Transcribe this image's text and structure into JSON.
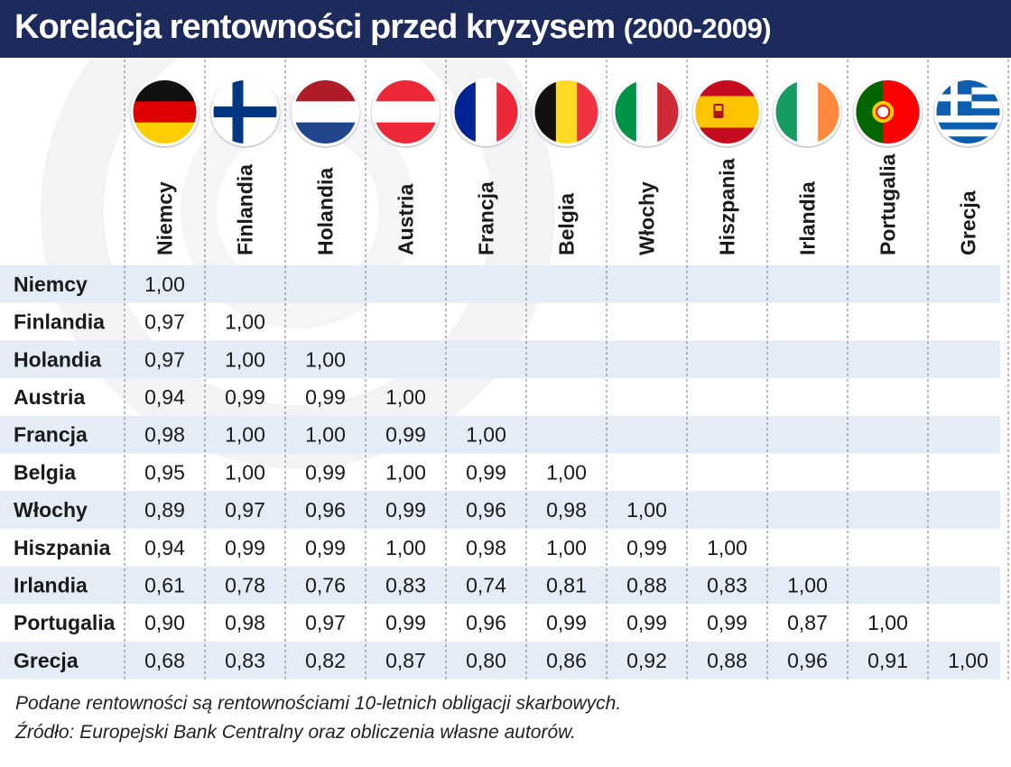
{
  "title": {
    "main": "Korelacja rentowności przed kryzysem",
    "sub": "(2000-2009)"
  },
  "colors": {
    "header_bg": "#1d2a5c",
    "row_band": "#e4ecf7"
  },
  "chart_data": {
    "type": "table",
    "title": "Korelacja rentowności przed kryzysem (2000-2009)",
    "columns": [
      {
        "name": "Niemcy",
        "flag": "germany-flag-icon"
      },
      {
        "name": "Finlandia",
        "flag": "finland-flag-icon"
      },
      {
        "name": "Holandia",
        "flag": "netherlands-flag-icon"
      },
      {
        "name": "Austria",
        "flag": "austria-flag-icon"
      },
      {
        "name": "Francja",
        "flag": "france-flag-icon"
      },
      {
        "name": "Belgia",
        "flag": "belgium-flag-icon"
      },
      {
        "name": "Włochy",
        "flag": "italy-flag-icon"
      },
      {
        "name": "Hiszpania",
        "flag": "spain-flag-icon"
      },
      {
        "name": "Irlandia",
        "flag": "ireland-flag-icon"
      },
      {
        "name": "Portugalia",
        "flag": "portugal-flag-icon"
      },
      {
        "name": "Grecja",
        "flag": "greece-flag-icon"
      }
    ],
    "rows": [
      {
        "name": "Niemcy",
        "values": [
          "1,00"
        ]
      },
      {
        "name": "Finlandia",
        "values": [
          "0,97",
          "1,00"
        ]
      },
      {
        "name": "Holandia",
        "values": [
          "0,97",
          "1,00",
          "1,00"
        ]
      },
      {
        "name": "Austria",
        "values": [
          "0,94",
          "0,99",
          "0,99",
          "1,00"
        ]
      },
      {
        "name": "Francja",
        "values": [
          "0,98",
          "1,00",
          "1,00",
          "0,99",
          "1,00"
        ]
      },
      {
        "name": "Belgia",
        "values": [
          "0,95",
          "1,00",
          "0,99",
          "1,00",
          "0,99",
          "1,00"
        ]
      },
      {
        "name": "Włochy",
        "values": [
          "0,89",
          "0,97",
          "0,96",
          "0,99",
          "0,96",
          "0,98",
          "1,00"
        ]
      },
      {
        "name": "Hiszpania",
        "values": [
          "0,94",
          "0,99",
          "0,99",
          "1,00",
          "0,98",
          "1,00",
          "0,99",
          "1,00"
        ]
      },
      {
        "name": "Irlandia",
        "values": [
          "0,61",
          "0,78",
          "0,76",
          "0,83",
          "0,74",
          "0,81",
          "0,88",
          "0,83",
          "1,00"
        ]
      },
      {
        "name": "Portugalia",
        "values": [
          "0,90",
          "0,98",
          "0,97",
          "0,99",
          "0,96",
          "0,99",
          "0,99",
          "0,99",
          "0,87",
          "1,00"
        ]
      },
      {
        "name": "Grecja",
        "values": [
          "0,68",
          "0,83",
          "0,82",
          "0,87",
          "0,80",
          "0,86",
          "0,92",
          "0,88",
          "0,96",
          "0,91",
          "1,00"
        ]
      }
    ]
  },
  "notes": {
    "line1": "Podane rentowności są rentownościami 10-letnich obligacji skarbowych.",
    "line2": "Źródło: Europejski Bank Centralny oraz obliczenia własne autorów."
  }
}
